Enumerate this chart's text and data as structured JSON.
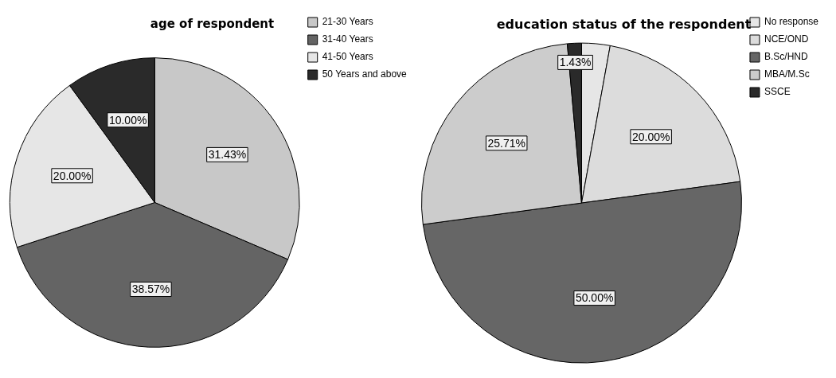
{
  "chart_data": [
    {
      "type": "pie",
      "title": "age of respondent",
      "categories": [
        "21-30 Years",
        "31-40 Years",
        "41-50 Years",
        "50 Years and above"
      ],
      "values": [
        31.43,
        38.57,
        20.0,
        10.0
      ],
      "colors": [
        "#c8c8c8",
        "#646464",
        "#e6e6e6",
        "#2a2a2a"
      ],
      "value_labels": [
        "31.43%",
        "38.57%",
        "20.00%",
        "10.00%"
      ],
      "legend": "top right"
    },
    {
      "type": "pie",
      "title": "education status of the respondent",
      "categories": [
        "No response",
        "NCE/OND",
        "B.Sc/HND",
        "MBA/M.Sc",
        "SSCE"
      ],
      "values": [
        2.86,
        20.0,
        50.0,
        25.71,
        1.43
      ],
      "colors": [
        "#e6e6e6",
        "#dcdcdc",
        "#666666",
        "#cccccc",
        "#2a2a2a"
      ],
      "value_labels": [
        null,
        "20.00%",
        "50.00%",
        "25.71%",
        "1.43%"
      ],
      "legend": "top right"
    }
  ]
}
